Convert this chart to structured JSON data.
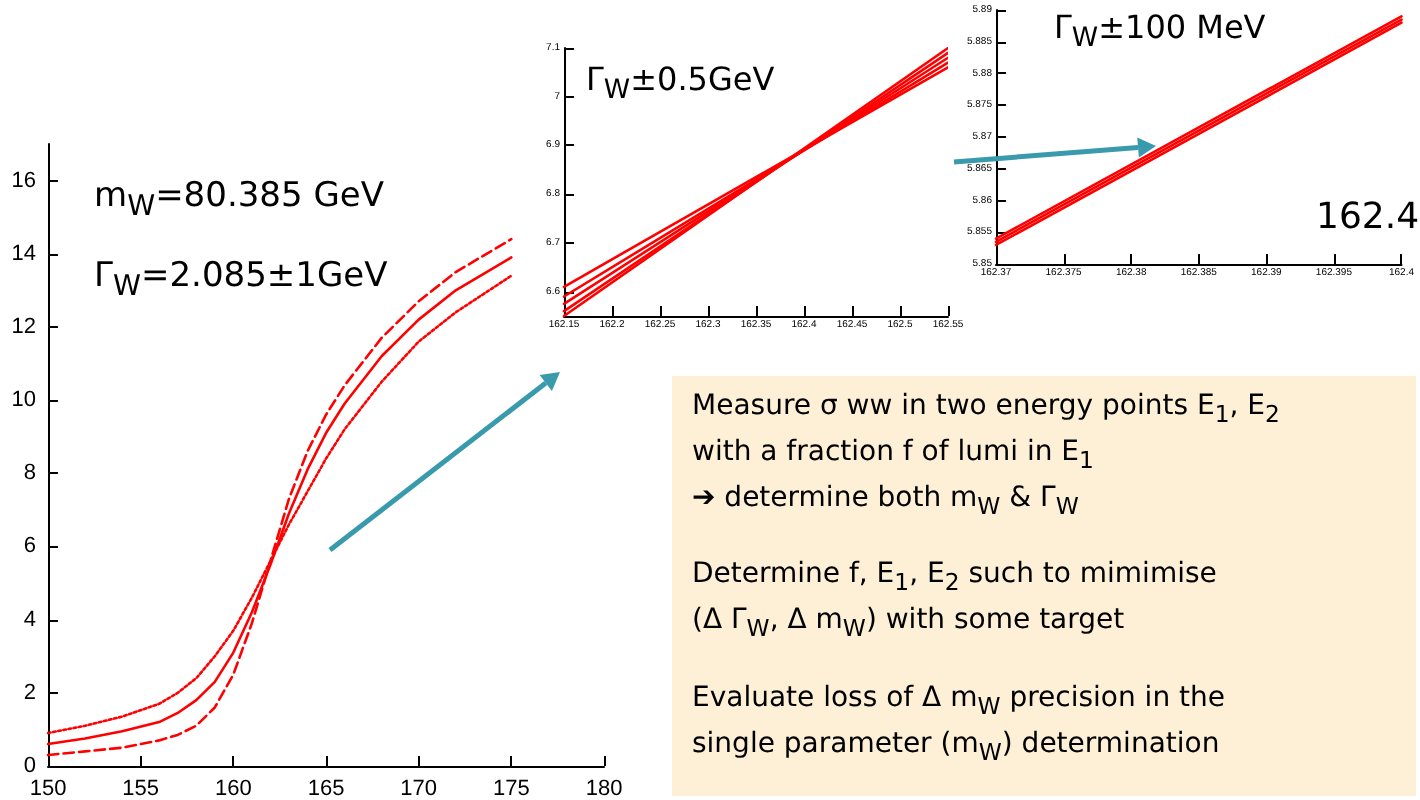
{
  "chart_data": [
    {
      "type": "line",
      "x": [
        150,
        152,
        154,
        156,
        157,
        158,
        159,
        160,
        161,
        162,
        163,
        164,
        165,
        166,
        168,
        170,
        172,
        175
      ],
      "xlim": [
        150,
        180
      ],
      "xticks": [
        150,
        155,
        160,
        165,
        170,
        175,
        180
      ],
      "ylim": [
        0,
        17
      ],
      "yticks": [
        0,
        2,
        4,
        6,
        8,
        10,
        12,
        14,
        16
      ],
      "marker": "none",
      "annotations": [
        "m$_{W}$=80.385 GeV",
        "Γ$_{W}$=2.085±1GeV"
      ],
      "series": [
        {
          "color": "#ff0000",
          "line_style": "solid",
          "values": [
            0.6,
            0.75,
            0.95,
            1.2,
            1.45,
            1.8,
            2.3,
            3.1,
            4.2,
            5.5,
            6.9,
            8.1,
            9.1,
            9.9,
            11.2,
            12.2,
            13.0,
            13.9
          ]
        },
        {
          "color": "#ff0000",
          "line_style": "dashed",
          "values": [
            0.3,
            0.4,
            0.5,
            0.7,
            0.85,
            1.1,
            1.6,
            2.5,
            3.9,
            5.6,
            7.3,
            8.6,
            9.6,
            10.4,
            11.7,
            12.7,
            13.5,
            14.4
          ]
        },
        {
          "color": "#ff0000",
          "line_style": "dotted",
          "values": [
            0.9,
            1.1,
            1.35,
            1.7,
            2.0,
            2.4,
            3.0,
            3.7,
            4.6,
            5.6,
            6.6,
            7.5,
            8.4,
            9.2,
            10.5,
            11.6,
            12.4,
            13.4
          ]
        }
      ]
    },
    {
      "type": "line",
      "x": [
        162.15,
        162.55
      ],
      "xlim": [
        162.15,
        162.55
      ],
      "xticks": [
        162.15,
        162.2,
        162.25,
        162.3,
        162.35,
        162.4,
        162.45,
        162.5,
        162.55
      ],
      "ylim": [
        6.55,
        7.1
      ],
      "yticks": [
        6.6,
        6.7,
        6.8,
        6.9,
        7,
        7.1
      ],
      "marker": "none",
      "annotations": [
        "Γ$_{W}$±0.5GeV"
      ],
      "series": [
        {
          "color": "#ff0000",
          "values": [
            6.61,
            7.06
          ]
        },
        {
          "color": "#ff0000",
          "values": [
            6.59,
            7.07
          ]
        },
        {
          "color": "#ff0000",
          "values": [
            6.575,
            7.08
          ]
        },
        {
          "color": "#ff0000",
          "values": [
            6.56,
            7.09
          ]
        },
        {
          "color": "#ff0000",
          "values": [
            6.55,
            7.1
          ]
        }
      ]
    },
    {
      "type": "line",
      "x": [
        162.37,
        162.4
      ],
      "xlim": [
        162.37,
        162.4
      ],
      "xticks": [
        162.37,
        162.375,
        162.38,
        162.385,
        162.39,
        162.395,
        162.4
      ],
      "ylim": [
        5.85,
        5.89
      ],
      "yticks": [
        5.85,
        5.855,
        5.86,
        5.865,
        5.87,
        5.875,
        5.88,
        5.885,
        5.89
      ],
      "marker": "none",
      "annotations": [
        "Γ$_{W}$±100 MeV",
        "162.4"
      ],
      "series": [
        {
          "color": "#ff0000",
          "values": [
            5.853,
            5.888
          ]
        },
        {
          "color": "#ff0000",
          "values": [
            5.8535,
            5.8885
          ]
        },
        {
          "color": "#ff0000",
          "values": [
            5.854,
            5.889
          ]
        }
      ]
    },
    {
      "type": "other",
      "annotations": [
        "Measure σ ww in two energy points E$_{1}$, E$_{2}$",
        "with a fraction f of lumi in E$_{1}$",
        "➔ determine both m$_{W}$ & Γ$_{W}$",
        "Determine f, E$_{1}$, E$_{2}$ such to mimimise",
        "(Δ Γ$_{W}$, Δ m$_{W}$)   with some target",
        "Evaluate loss of Δ m$_{W}$ precision in the",
        "single parameter (m$_{W}$) determination"
      ]
    }
  ]
}
